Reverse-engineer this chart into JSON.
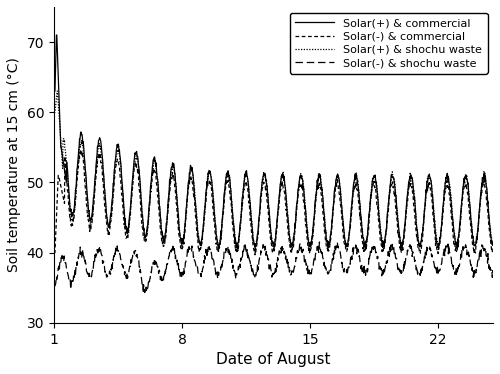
{
  "xlabel": "Date of August",
  "ylabel": "Soil temperature at 15 cm (°C)",
  "xlim": [
    1,
    25
  ],
  "ylim": [
    30,
    75
  ],
  "yticks": [
    30,
    40,
    50,
    60,
    70
  ],
  "xticks": [
    1,
    8,
    15,
    22
  ],
  "legend_labels": [
    "Solar(+) & commercial",
    "Solar(-) & commercial",
    "Solar(+) & shochu waste",
    "Solar(-) & shochu waste"
  ],
  "line_color": "#000000"
}
